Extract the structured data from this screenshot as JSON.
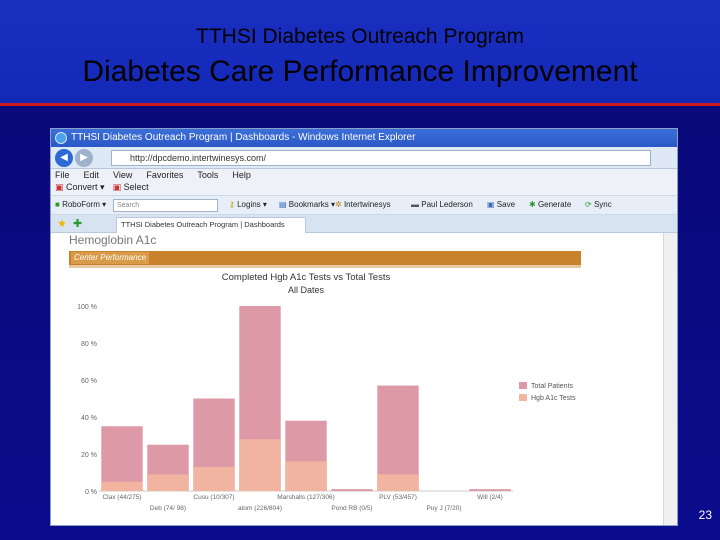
{
  "slide": {
    "subtitle": "TTHSI Diabetes Outreach Program",
    "title": "Diabetes Care Performance Improvement",
    "page_number": "23",
    "colors": {
      "background": "#0a0c8c",
      "accent_line": "#cc1a1a"
    }
  },
  "browser": {
    "window_title": "TTHSI Diabetes Outreach Program | Dashboards - Windows Internet Explorer",
    "url": "http://dpcdemo.intertwinesys.com/",
    "menu": [
      "File",
      "Edit",
      "View",
      "Favorites",
      "Tools",
      "Help"
    ],
    "menu2": [
      "Convert",
      "Select"
    ],
    "toolbar": {
      "roboform": "RoboForm",
      "search_placeholder": "Search",
      "logins": "Logins",
      "bookmarks": "Bookmarks",
      "intertwinesys": "Intertwinesys",
      "user": "Paul Lederson",
      "save": "Save",
      "generate": "Generate",
      "sync": "Sync"
    },
    "tab_label": "TTHSI Diabetes Outreach Program | Dashboards"
  },
  "dashboard": {
    "section": "Hemoglobin A1c",
    "tab": "Center Performance"
  },
  "chart_data": {
    "type": "bar",
    "title": "Completed Hgb A1c Tests vs Total Tests",
    "subtitle": "All Dates",
    "ylim": [
      0,
      100
    ],
    "yticks": [
      "100 %",
      "80 %",
      "60 %",
      "40 %",
      "20 %",
      "0 %"
    ],
    "categories": [
      "Clax (44/275)",
      "Deb (74/ 98)",
      "Cusu (10/307)",
      "atom (226/804)",
      "Marshalls (127/306)",
      "Pond RB (0/5)",
      "PLV (53/457)",
      "Puy J (7/20)",
      "Will (2/4)"
    ],
    "series": [
      {
        "name": "Total Patients",
        "color": "#dd9aa6",
        "values": [
          35,
          25,
          50,
          100,
          38,
          1,
          57,
          0,
          1
        ]
      },
      {
        "name": "Hgb A1c Tests",
        "color": "#f0b4a0",
        "values": [
          5,
          9,
          13,
          28,
          16,
          0,
          9,
          0,
          0
        ]
      }
    ],
    "legend_position": "right"
  }
}
